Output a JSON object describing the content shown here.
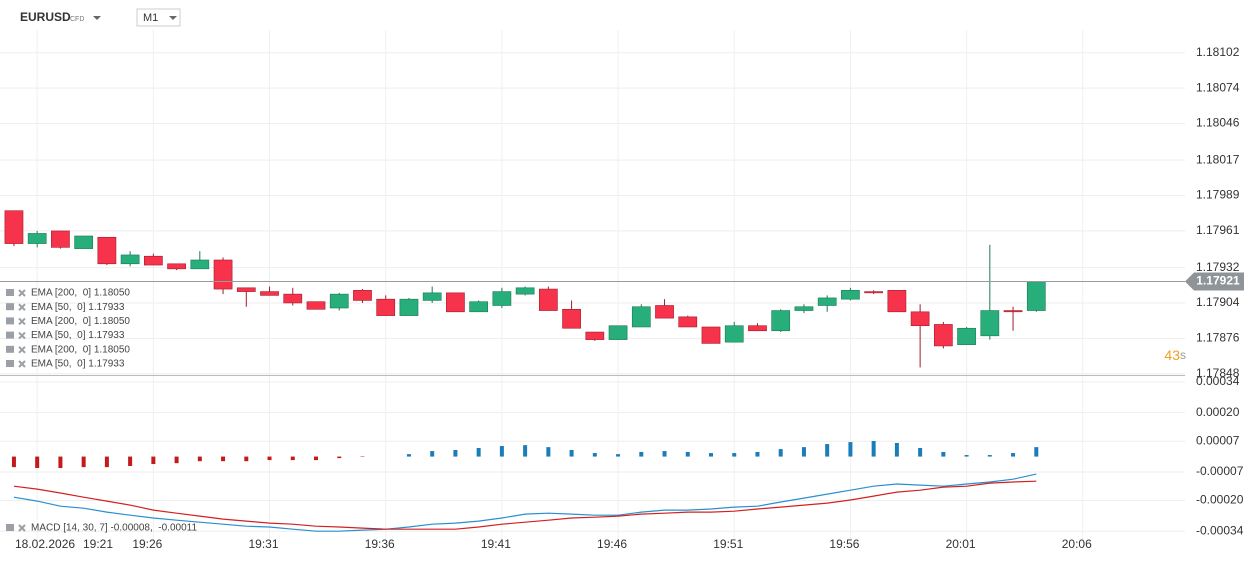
{
  "header": {
    "symbol": "EURUSD",
    "kind": "CFD",
    "timeframe": "M1"
  },
  "chart_data": [
    {
      "type": "candlestick",
      "x": [
        0,
        1,
        2,
        3,
        4,
        5,
        6,
        7,
        8,
        9,
        10,
        11,
        12,
        13,
        14,
        15,
        16,
        17,
        18,
        19,
        20,
        21,
        22,
        23,
        24,
        25,
        26,
        27,
        28,
        29,
        30,
        31,
        32,
        33,
        34,
        35,
        36,
        37,
        38,
        39,
        40,
        41,
        42,
        43,
        44
      ],
      "open": [
        1.17977,
        1.17951,
        1.17961,
        1.17947,
        1.17956,
        1.17935,
        1.17941,
        1.17935,
        1.17931,
        1.17938,
        1.17916,
        1.17913,
        1.17911,
        1.17905,
        1.179,
        1.17914,
        1.17907,
        1.17894,
        1.17906,
        1.17912,
        1.17897,
        1.17902,
        1.17911,
        1.17915,
        1.17899,
        1.17881,
        1.17875,
        1.17885,
        1.17902,
        1.17893,
        1.17885,
        1.17873,
        1.17886,
        1.17882,
        1.17898,
        1.17902,
        1.17907,
        1.17913,
        1.17914,
        1.17897,
        1.17887,
        1.17871,
        1.17878,
        1.17898,
        1.17898
      ],
      "high": [
        1.17977,
        1.17961,
        1.17961,
        1.17957,
        1.17956,
        1.17945,
        1.17943,
        1.17935,
        1.17945,
        1.1794,
        1.17916,
        1.17917,
        1.17916,
        1.17905,
        1.17912,
        1.17915,
        1.1791,
        1.17908,
        1.17917,
        1.17912,
        1.17906,
        1.17916,
        1.17917,
        1.17917,
        1.17906,
        1.17881,
        1.17886,
        1.17903,
        1.17907,
        1.17894,
        1.17885,
        1.17889,
        1.17888,
        1.17899,
        1.17903,
        1.1791,
        1.17916,
        1.17914,
        1.17914,
        1.17903,
        1.17889,
        1.17885,
        1.1795,
        1.17901,
        1.17921
      ],
      "low": [
        1.17949,
        1.17948,
        1.17947,
        1.17947,
        1.17934,
        1.17933,
        1.17934,
        1.1793,
        1.17931,
        1.17911,
        1.17901,
        1.1791,
        1.17902,
        1.17899,
        1.17898,
        1.17904,
        1.17894,
        1.17894,
        1.17904,
        1.17897,
        1.17897,
        1.179,
        1.1791,
        1.17898,
        1.17884,
        1.17874,
        1.17875,
        1.17885,
        1.17892,
        1.17885,
        1.17872,
        1.17873,
        1.17882,
        1.17881,
        1.17896,
        1.17897,
        1.17906,
        1.17911,
        1.17897,
        1.17853,
        1.17868,
        1.17871,
        1.17875,
        1.17882,
        1.17897
      ],
      "close": [
        1.17951,
        1.17959,
        1.17948,
        1.17957,
        1.17935,
        1.17942,
        1.17934,
        1.17931,
        1.17938,
        1.17915,
        1.17913,
        1.1791,
        1.17904,
        1.17899,
        1.17911,
        1.17906,
        1.17894,
        1.17907,
        1.17912,
        1.17897,
        1.17905,
        1.17913,
        1.17916,
        1.17898,
        1.17884,
        1.17875,
        1.17886,
        1.17901,
        1.17892,
        1.17885,
        1.17872,
        1.17886,
        1.17882,
        1.17898,
        1.17901,
        1.17908,
        1.17914,
        1.17912,
        1.17897,
        1.17886,
        1.1787,
        1.17884,
        1.17898,
        1.17897,
        1.17921
      ],
      "up_color": "#27ae7a",
      "down_color": "#f7324b",
      "xlim": [
        -0.6,
        50.4
      ],
      "ylim": [
        1.17847,
        1.1812
      ],
      "yticks": [
        1.18102,
        1.18074,
        1.18046,
        1.18017,
        1.17989,
        1.17961,
        1.17932,
        1.17904,
        1.17876,
        1.17848
      ],
      "grid": true,
      "last_price": 1.17921,
      "countdown": "43",
      "countdown_unit": "s",
      "indicators": [
        "EMA [200,  0] 1.18050",
        "EMA [50,  0] 1.17933",
        "EMA [200,  0] 1.18050",
        "EMA [50,  0] 1.17933",
        "EMA [200,  0] 1.18050",
        "EMA [50,  0] 1.17933"
      ]
    },
    {
      "type": "macd",
      "x": [
        0,
        1,
        2,
        3,
        4,
        5,
        6,
        7,
        8,
        9,
        10,
        11,
        12,
        13,
        14,
        15,
        16,
        17,
        18,
        19,
        20,
        21,
        22,
        23,
        24,
        25,
        26,
        27,
        28,
        29,
        30,
        31,
        32,
        33,
        34,
        35,
        36,
        37,
        38,
        39,
        40,
        41,
        42,
        43,
        44
      ],
      "histogram": [
        -4.8e-05,
        -5.2e-05,
        -5.2e-05,
        -4.8e-05,
        -4.8e-05,
        -4.3e-05,
        -3.4e-05,
        -3e-05,
        -2.1e-05,
        -2.1e-05,
        -2.1e-05,
        -1.6e-05,
        -1.6e-05,
        -1.6e-05,
        -7e-06,
        -2e-06,
        0,
        1.1e-05,
        2.5e-05,
        3e-05,
        3.9e-05,
        4.8e-05,
        5.2e-05,
        4.3e-05,
        3e-05,
        1.6e-05,
        1.1e-05,
        2.1e-05,
        2.5e-05,
        2.1e-05,
        1.6e-05,
        1.6e-05,
        2.1e-05,
        3.4e-05,
        4.3e-05,
        5.7e-05,
        6.6e-05,
        7.1e-05,
        6.2e-05,
        3.9e-05,
        2.1e-05,
        7e-06,
        7e-06,
        1.6e-05,
        4.3e-05
      ],
      "histogram_colors": {
        "positive": "#1b7db8",
        "negative": "#c41a1a"
      },
      "series": [
        {
          "color": "#2a8fd0",
          "values": [
            -0.000185,
            -0.000203,
            -0.000226,
            -0.000235,
            -0.000253,
            -0.000267,
            -0.00028,
            -0.00029,
            -0.000299,
            -0.000308,
            -0.000317,
            -0.000321,
            -0.000331,
            -0.00034,
            -0.00034,
            -0.000335,
            -0.000331,
            -0.000321,
            -0.000308,
            -0.000303,
            -0.000294,
            -0.00028,
            -0.000262,
            -0.000258,
            -0.000262,
            -0.000267,
            -0.000267,
            -0.000253,
            -0.000244,
            -0.000244,
            -0.000239,
            -0.00023,
            -0.000226,
            -0.000207,
            -0.000189,
            -0.000171,
            -0.000153,
            -0.000135,
            -0.000125,
            -0.00013,
            -0.000135,
            -0.000125,
            -0.000116,
            -0.000103,
            -8e-05
          ]
        },
        {
          "color": "#d42020",
          "values": [
            -0.000135,
            -0.000148,
            -0.000166,
            -0.000185,
            -0.000203,
            -0.000221,
            -0.000244,
            -0.000258,
            -0.000271,
            -0.000285,
            -0.000294,
            -0.000303,
            -0.000308,
            -0.000317,
            -0.000321,
            -0.000326,
            -0.000331,
            -0.000331,
            -0.000331,
            -0.000331,
            -0.000321,
            -0.000308,
            -0.000299,
            -0.00029,
            -0.00028,
            -0.000276,
            -0.000271,
            -0.000262,
            -0.000258,
            -0.000253,
            -0.000253,
            -0.000249,
            -0.000239,
            -0.00023,
            -0.000221,
            -0.000212,
            -0.000198,
            -0.00018,
            -0.000162,
            -0.000153,
            -0.000139,
            -0.000135,
            -0.000121,
            -0.000116,
            -0.000112
          ]
        }
      ],
      "legend": "MACD [14, 30, 7] -0.00008,  -0.00011",
      "xlim": [
        -0.6,
        50.4
      ],
      "ylim": [
        -0.00038,
        0.000367
      ],
      "yticks": [
        0.00034,
        {
          "value": 0.0002,
          "label": "0.00020"
        },
        7e-05,
        -7e-05,
        {
          "value": -0.0002,
          "label": "-0.00020"
        },
        -0.00034
      ],
      "grid": true,
      "date": "18.02.2026",
      "xticks": [
        {
          "value": 1,
          "label": "19:21"
        },
        {
          "value": 6,
          "label": "19:26"
        },
        {
          "value": 11,
          "label": "19:31"
        },
        {
          "value": 16,
          "label": "19:36"
        },
        {
          "value": 21,
          "label": "19:41"
        },
        {
          "value": 26,
          "label": "19:46"
        },
        {
          "value": 31,
          "label": "19:51"
        },
        {
          "value": 36,
          "label": "19:56"
        },
        {
          "value": 41,
          "label": "20:01"
        },
        {
          "value": 46,
          "label": "20:06"
        }
      ]
    }
  ]
}
